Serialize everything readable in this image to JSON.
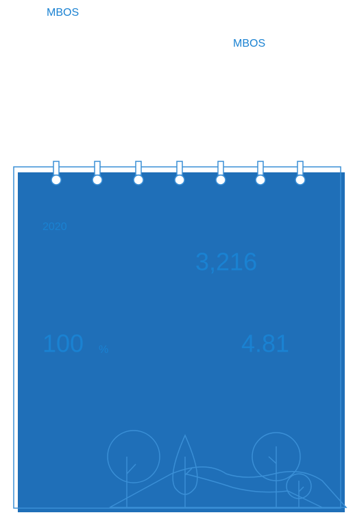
{
  "header": {
    "labels": [
      "MBOS",
      "MBOS"
    ]
  },
  "card": {
    "year": "2020",
    "total": "3,216",
    "rate": {
      "value": "100",
      "unit": "%"
    },
    "score": "4.81"
  }
}
